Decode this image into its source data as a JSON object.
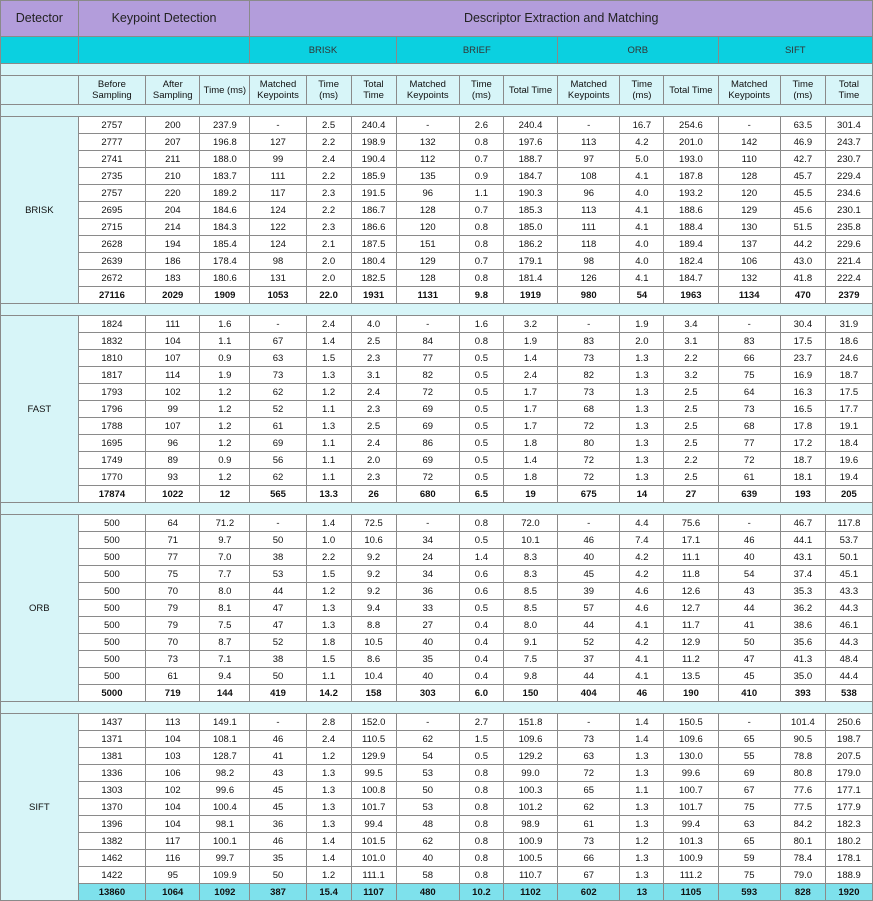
{
  "header": {
    "detector": "Detector",
    "keypoint_detection": "Keypoint Detection",
    "descriptor_extraction": "Descriptor Extraction and Matching"
  },
  "descriptors": [
    "BRISK",
    "BRIEF",
    "ORB",
    "SIFT"
  ],
  "columns": {
    "before_sampling": "Before Sampling",
    "after_sampling": "After Sampling",
    "time_ms": "Time (ms)",
    "matched_keypoints": "Matched Keypoints",
    "total_time": "Total Time"
  },
  "groups": [
    {
      "detector": "BRISK",
      "rows": [
        [
          "2757",
          "200",
          "237.9",
          "-",
          "2.5",
          "240.4",
          "-",
          "2.6",
          "240.4",
          "-",
          "16.7",
          "254.6",
          "-",
          "63.5",
          "301.4"
        ],
        [
          "2777",
          "207",
          "196.8",
          "127",
          "2.2",
          "198.9",
          "132",
          "0.8",
          "197.6",
          "113",
          "4.2",
          "201.0",
          "142",
          "46.9",
          "243.7"
        ],
        [
          "2741",
          "211",
          "188.0",
          "99",
          "2.4",
          "190.4",
          "112",
          "0.7",
          "188.7",
          "97",
          "5.0",
          "193.0",
          "110",
          "42.7",
          "230.7"
        ],
        [
          "2735",
          "210",
          "183.7",
          "111",
          "2.2",
          "185.9",
          "135",
          "0.9",
          "184.7",
          "108",
          "4.1",
          "187.8",
          "128",
          "45.7",
          "229.4"
        ],
        [
          "2757",
          "220",
          "189.2",
          "117",
          "2.3",
          "191.5",
          "96",
          "1.1",
          "190.3",
          "96",
          "4.0",
          "193.2",
          "120",
          "45.5",
          "234.6"
        ],
        [
          "2695",
          "204",
          "184.6",
          "124",
          "2.2",
          "186.7",
          "128",
          "0.7",
          "185.3",
          "113",
          "4.1",
          "188.6",
          "129",
          "45.6",
          "230.1"
        ],
        [
          "2715",
          "214",
          "184.3",
          "122",
          "2.3",
          "186.6",
          "120",
          "0.8",
          "185.0",
          "111",
          "4.1",
          "188.4",
          "130",
          "51.5",
          "235.8"
        ],
        [
          "2628",
          "194",
          "185.4",
          "124",
          "2.1",
          "187.5",
          "151",
          "0.8",
          "186.2",
          "118",
          "4.0",
          "189.4",
          "137",
          "44.2",
          "229.6"
        ],
        [
          "2639",
          "186",
          "178.4",
          "98",
          "2.0",
          "180.4",
          "129",
          "0.7",
          "179.1",
          "98",
          "4.0",
          "182.4",
          "106",
          "43.0",
          "221.4"
        ],
        [
          "2672",
          "183",
          "180.6",
          "131",
          "2.0",
          "182.5",
          "128",
          "0.8",
          "181.4",
          "126",
          "4.1",
          "184.7",
          "132",
          "41.8",
          "222.4"
        ]
      ],
      "total": [
        "27116",
        "2029",
        "1909",
        "1053",
        "22.0",
        "1931",
        "1131",
        "9.8",
        "1919",
        "980",
        "54",
        "1963",
        "1134",
        "470",
        "2379"
      ]
    },
    {
      "detector": "FAST",
      "rows": [
        [
          "1824",
          "111",
          "1.6",
          "-",
          "2.4",
          "4.0",
          "-",
          "1.6",
          "3.2",
          "-",
          "1.9",
          "3.4",
          "-",
          "30.4",
          "31.9"
        ],
        [
          "1832",
          "104",
          "1.1",
          "67",
          "1.4",
          "2.5",
          "84",
          "0.8",
          "1.9",
          "83",
          "2.0",
          "3.1",
          "83",
          "17.5",
          "18.6"
        ],
        [
          "1810",
          "107",
          "0.9",
          "63",
          "1.5",
          "2.3",
          "77",
          "0.5",
          "1.4",
          "73",
          "1.3",
          "2.2",
          "66",
          "23.7",
          "24.6"
        ],
        [
          "1817",
          "114",
          "1.9",
          "73",
          "1.3",
          "3.1",
          "82",
          "0.5",
          "2.4",
          "82",
          "1.3",
          "3.2",
          "75",
          "16.9",
          "18.7"
        ],
        [
          "1793",
          "102",
          "1.2",
          "62",
          "1.2",
          "2.4",
          "72",
          "0.5",
          "1.7",
          "73",
          "1.3",
          "2.5",
          "64",
          "16.3",
          "17.5"
        ],
        [
          "1796",
          "99",
          "1.2",
          "52",
          "1.1",
          "2.3",
          "69",
          "0.5",
          "1.7",
          "68",
          "1.3",
          "2.5",
          "73",
          "16.5",
          "17.7"
        ],
        [
          "1788",
          "107",
          "1.2",
          "61",
          "1.3",
          "2.5",
          "69",
          "0.5",
          "1.7",
          "72",
          "1.3",
          "2.5",
          "68",
          "17.8",
          "19.1"
        ],
        [
          "1695",
          "96",
          "1.2",
          "69",
          "1.1",
          "2.4",
          "86",
          "0.5",
          "1.8",
          "80",
          "1.3",
          "2.5",
          "77",
          "17.2",
          "18.4"
        ],
        [
          "1749",
          "89",
          "0.9",
          "56",
          "1.1",
          "2.0",
          "69",
          "0.5",
          "1.4",
          "72",
          "1.3",
          "2.2",
          "72",
          "18.7",
          "19.6"
        ],
        [
          "1770",
          "93",
          "1.2",
          "62",
          "1.1",
          "2.3",
          "72",
          "0.5",
          "1.8",
          "72",
          "1.3",
          "2.5",
          "61",
          "18.1",
          "19.4"
        ]
      ],
      "total": [
        "17874",
        "1022",
        "12",
        "565",
        "13.3",
        "26",
        "680",
        "6.5",
        "19",
        "675",
        "14",
        "27",
        "639",
        "193",
        "205"
      ]
    },
    {
      "detector": "ORB",
      "rows": [
        [
          "500",
          "64",
          "71.2",
          "-",
          "1.4",
          "72.5",
          "-",
          "0.8",
          "72.0",
          "-",
          "4.4",
          "75.6",
          "-",
          "46.7",
          "117.8"
        ],
        [
          "500",
          "71",
          "9.7",
          "50",
          "1.0",
          "10.6",
          "34",
          "0.5",
          "10.1",
          "46",
          "7.4",
          "17.1",
          "46",
          "44.1",
          "53.7"
        ],
        [
          "500",
          "77",
          "7.0",
          "38",
          "2.2",
          "9.2",
          "24",
          "1.4",
          "8.3",
          "40",
          "4.2",
          "11.1",
          "40",
          "43.1",
          "50.1"
        ],
        [
          "500",
          "75",
          "7.7",
          "53",
          "1.5",
          "9.2",
          "34",
          "0.6",
          "8.3",
          "45",
          "4.2",
          "11.8",
          "54",
          "37.4",
          "45.1"
        ],
        [
          "500",
          "70",
          "8.0",
          "44",
          "1.2",
          "9.2",
          "36",
          "0.6",
          "8.5",
          "39",
          "4.6",
          "12.6",
          "43",
          "35.3",
          "43.3"
        ],
        [
          "500",
          "79",
          "8.1",
          "47",
          "1.3",
          "9.4",
          "33",
          "0.5",
          "8.5",
          "57",
          "4.6",
          "12.7",
          "44",
          "36.2",
          "44.3"
        ],
        [
          "500",
          "79",
          "7.5",
          "47",
          "1.3",
          "8.8",
          "27",
          "0.4",
          "8.0",
          "44",
          "4.1",
          "11.7",
          "41",
          "38.6",
          "46.1"
        ],
        [
          "500",
          "70",
          "8.7",
          "52",
          "1.8",
          "10.5",
          "40",
          "0.4",
          "9.1",
          "52",
          "4.2",
          "12.9",
          "50",
          "35.6",
          "44.3"
        ],
        [
          "500",
          "73",
          "7.1",
          "38",
          "1.5",
          "8.6",
          "35",
          "0.4",
          "7.5",
          "37",
          "4.1",
          "11.2",
          "47",
          "41.3",
          "48.4"
        ],
        [
          "500",
          "61",
          "9.4",
          "50",
          "1.1",
          "10.4",
          "40",
          "0.4",
          "9.8",
          "44",
          "4.1",
          "13.5",
          "45",
          "35.0",
          "44.4"
        ]
      ],
      "total": [
        "5000",
        "719",
        "144",
        "419",
        "14.2",
        "158",
        "303",
        "6.0",
        "150",
        "404",
        "46",
        "190",
        "410",
        "393",
        "538"
      ]
    },
    {
      "detector": "SIFT",
      "rows": [
        [
          "1437",
          "113",
          "149.1",
          "-",
          "2.8",
          "152.0",
          "-",
          "2.7",
          "151.8",
          "-",
          "1.4",
          "150.5",
          "-",
          "101.4",
          "250.6"
        ],
        [
          "1371",
          "104",
          "108.1",
          "46",
          "2.4",
          "110.5",
          "62",
          "1.5",
          "109.6",
          "73",
          "1.4",
          "109.6",
          "65",
          "90.5",
          "198.7"
        ],
        [
          "1381",
          "103",
          "128.7",
          "41",
          "1.2",
          "129.9",
          "54",
          "0.5",
          "129.2",
          "63",
          "1.3",
          "130.0",
          "55",
          "78.8",
          "207.5"
        ],
        [
          "1336",
          "106",
          "98.2",
          "43",
          "1.3",
          "99.5",
          "53",
          "0.8",
          "99.0",
          "72",
          "1.3",
          "99.6",
          "69",
          "80.8",
          "179.0"
        ],
        [
          "1303",
          "102",
          "99.6",
          "45",
          "1.3",
          "100.8",
          "50",
          "0.8",
          "100.3",
          "65",
          "1.1",
          "100.7",
          "67",
          "77.6",
          "177.1"
        ],
        [
          "1370",
          "104",
          "100.4",
          "45",
          "1.3",
          "101.7",
          "53",
          "0.8",
          "101.2",
          "62",
          "1.3",
          "101.7",
          "75",
          "77.5",
          "177.9"
        ],
        [
          "1396",
          "104",
          "98.1",
          "36",
          "1.3",
          "99.4",
          "48",
          "0.8",
          "98.9",
          "61",
          "1.3",
          "99.4",
          "63",
          "84.2",
          "182.3"
        ],
        [
          "1382",
          "117",
          "100.1",
          "46",
          "1.4",
          "101.5",
          "62",
          "0.8",
          "100.9",
          "73",
          "1.2",
          "101.3",
          "65",
          "80.1",
          "180.2"
        ],
        [
          "1462",
          "116",
          "99.7",
          "35",
          "1.4",
          "101.0",
          "40",
          "0.8",
          "100.5",
          "66",
          "1.3",
          "100.9",
          "59",
          "78.4",
          "178.1"
        ],
        [
          "1422",
          "95",
          "109.9",
          "50",
          "1.2",
          "111.1",
          "58",
          "0.8",
          "110.7",
          "67",
          "1.3",
          "111.2",
          "75",
          "79.0",
          "188.9"
        ]
      ],
      "total": [
        "13860",
        "1064",
        "1092",
        "387",
        "15.4",
        "1107",
        "480",
        "10.2",
        "1102",
        "602",
        "13",
        "1105",
        "593",
        "828",
        "1920"
      ]
    }
  ]
}
